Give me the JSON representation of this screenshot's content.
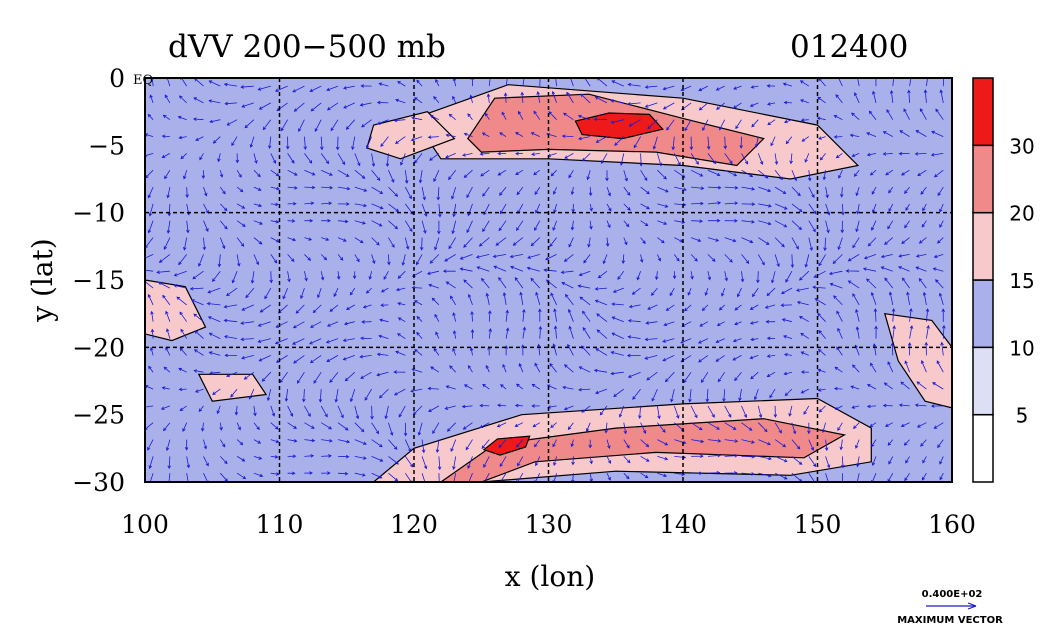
{
  "chart_data": {
    "type": "heatmap",
    "title": "dVV 200−500 mb",
    "date_label": "012400",
    "xlabel": "x (lon)",
    "ylabel": "y (lat)",
    "xlim": [
      100,
      160
    ],
    "ylim": [
      -30,
      0
    ],
    "x_ticks": [
      "100",
      "110",
      "120",
      "130",
      "140",
      "150",
      "160"
    ],
    "y_ticks": [
      "0",
      "−5",
      "−10",
      "−15",
      "−20",
      "−25",
      "−30"
    ],
    "eq_label": "EQ",
    "grid": true,
    "gridlines_lon": [
      110,
      120,
      130,
      140,
      150
    ],
    "gridlines_lat": [
      -10,
      -20
    ],
    "colorbar": {
      "levels": [
        "5",
        "10",
        "15",
        "20",
        "30"
      ],
      "colors": [
        "#ffffff",
        "#dddff6",
        "#aab0ea",
        "#f7c9cb",
        "#f08a8a",
        "#ee1a1a"
      ]
    },
    "legend": {
      "max_vector_value": "0.400E+02",
      "max_vector_label": "MAXIMUM VECTOR"
    },
    "vector_color": "#1a1ad6",
    "regions": [
      {
        "name": "band-north-strong",
        "level": 3,
        "pts": [
          [
            120,
            -3
          ],
          [
            127,
            -0.5
          ],
          [
            140,
            -1.5
          ],
          [
            150,
            -3.5
          ],
          [
            153,
            -6.5
          ],
          [
            148,
            -7.5
          ],
          [
            140,
            -6.5
          ],
          [
            130,
            -6
          ],
          [
            122,
            -6
          ]
        ]
      },
      {
        "name": "band-north-core",
        "level": 4,
        "pts": [
          [
            124,
            -4.5
          ],
          [
            126,
            -1.5
          ],
          [
            133,
            -1.2
          ],
          [
            140,
            -3
          ],
          [
            146,
            -4.5
          ],
          [
            144,
            -6.5
          ],
          [
            138,
            -5.5
          ],
          [
            130,
            -5.3
          ],
          [
            125,
            -5.5
          ]
        ]
      },
      {
        "name": "band-north-peak",
        "level": 5,
        "pts": [
          [
            132,
            -3.2
          ],
          [
            134.5,
            -2.6
          ],
          [
            137.5,
            -2.7
          ],
          [
            138.5,
            -3.8
          ],
          [
            135.5,
            -4.5
          ],
          [
            132.5,
            -4.2
          ]
        ]
      },
      {
        "name": "band-north-west",
        "level": 3,
        "pts": [
          [
            117,
            -3.5
          ],
          [
            121,
            -2.5
          ],
          [
            123,
            -4.5
          ],
          [
            119,
            -6
          ],
          [
            116.5,
            -5.2
          ]
        ]
      },
      {
        "name": "band-south-weak",
        "level": 3,
        "pts": [
          [
            117,
            -30
          ],
          [
            120,
            -27.5
          ],
          [
            128,
            -25
          ],
          [
            140,
            -24.2
          ],
          [
            150,
            -23.8
          ],
          [
            154,
            -26
          ],
          [
            154,
            -28.5
          ],
          [
            148,
            -29.5
          ],
          [
            135,
            -29.2
          ],
          [
            125,
            -30
          ]
        ]
      },
      {
        "name": "band-south-strong",
        "level": 4,
        "pts": [
          [
            122,
            -30
          ],
          [
            126,
            -27.2
          ],
          [
            135,
            -26
          ],
          [
            146,
            -25.3
          ],
          [
            152,
            -26.5
          ],
          [
            149,
            -28.2
          ],
          [
            138,
            -27.8
          ],
          [
            129,
            -28.5
          ],
          [
            125,
            -30
          ]
        ]
      },
      {
        "name": "band-south-peak",
        "level": 5,
        "pts": [
          [
            125.2,
            -27.6
          ],
          [
            126.2,
            -26.8
          ],
          [
            128.6,
            -26.6
          ],
          [
            128.3,
            -27.4
          ],
          [
            126.4,
            -28.0
          ]
        ]
      },
      {
        "name": "patch-east",
        "level": 3,
        "pts": [
          [
            155,
            -17.5
          ],
          [
            158.5,
            -18
          ],
          [
            160,
            -20
          ],
          [
            160,
            -24.5
          ],
          [
            158,
            -24
          ],
          [
            156,
            -21
          ]
        ]
      },
      {
        "name": "patch-west",
        "level": 3,
        "pts": [
          [
            100,
            -15
          ],
          [
            103,
            -15.5
          ],
          [
            104.5,
            -18.5
          ],
          [
            102,
            -19.5
          ],
          [
            100,
            -19
          ]
        ]
      },
      {
        "name": "patch-west2",
        "level": 3,
        "pts": [
          [
            104,
            -22
          ],
          [
            108,
            -22
          ],
          [
            109,
            -23.5
          ],
          [
            105,
            -24
          ]
        ]
      }
    ]
  }
}
